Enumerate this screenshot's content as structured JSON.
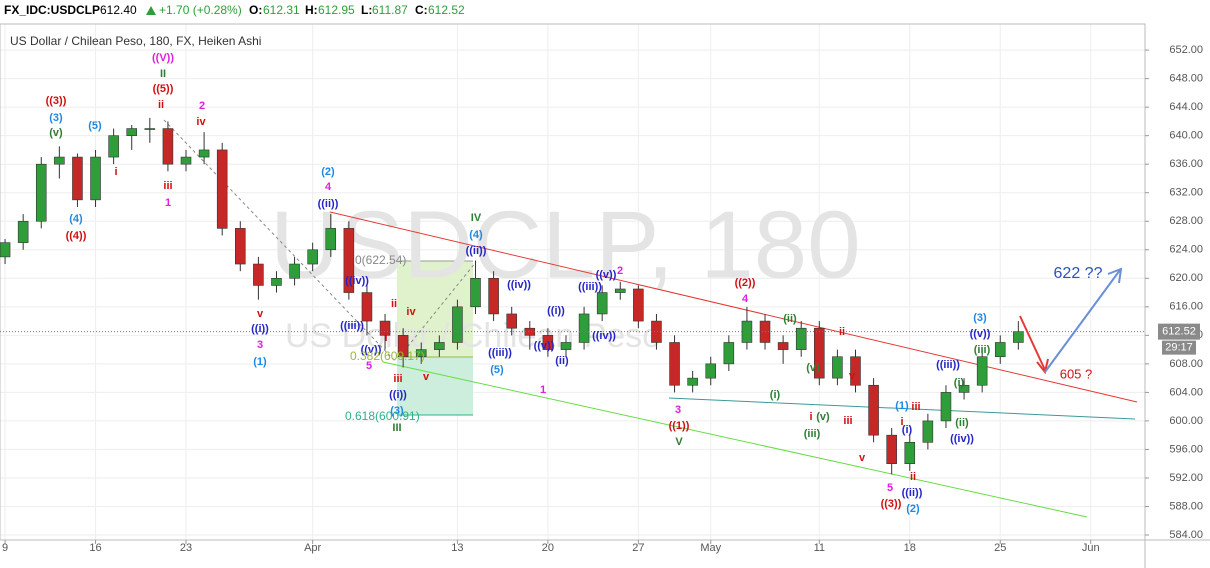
{
  "header": {
    "symbol": "FX_IDC:USDCLP",
    "price": "612.40",
    "change": "+1.70 (+0.28%)",
    "o_label": "O:",
    "o": "612.31",
    "h_label": "H:",
    "h": "612.95",
    "l_label": "L:",
    "l": "611.87",
    "c_label": "C:",
    "c": "612.52"
  },
  "chart_data": {
    "type": "candlestick",
    "title": "US Dollar / Chilean Peso, 180, FX, Heiken Ashi",
    "watermark": "USDCLP, 180",
    "watermark_sub": "US Dollar / Chilean Peso",
    "up_color": "#2f9e3a",
    "down_color": "#c62828",
    "grid": true,
    "x": [
      0,
      1,
      2,
      3,
      4,
      5,
      6,
      7,
      8,
      9,
      10,
      11,
      12,
      13,
      14,
      15,
      16,
      17,
      18,
      19,
      20,
      21,
      22,
      23,
      24,
      25,
      26,
      27,
      28,
      29,
      30,
      31,
      32,
      33,
      34,
      35,
      36,
      37,
      38,
      39,
      40,
      41,
      42,
      43,
      44,
      45,
      46,
      47,
      48,
      49,
      50,
      51,
      52,
      53,
      54,
      55,
      56
    ],
    "open": [
      623,
      625,
      628,
      636,
      637,
      631,
      637,
      640,
      641,
      641,
      636,
      637,
      638,
      627,
      622,
      619,
      620,
      622,
      624,
      627,
      618,
      614,
      612,
      609,
      610,
      611,
      616,
      620,
      615,
      613,
      612,
      610,
      611,
      615,
      618,
      618.5,
      614,
      611,
      605,
      606,
      608,
      611,
      614,
      611,
      610,
      613,
      606,
      609,
      605,
      598,
      594,
      597,
      600,
      604,
      605,
      609,
      611
    ],
    "high": [
      625.5,
      629,
      637,
      638.5,
      637.5,
      638,
      641,
      641.5,
      642.5,
      642,
      638,
      640.5,
      639,
      628,
      623,
      621,
      623,
      625,
      629,
      628,
      619,
      615,
      613,
      611,
      612,
      617,
      622.5,
      621,
      616,
      614,
      613,
      612,
      616,
      619,
      619.5,
      619,
      615,
      612,
      607,
      609,
      612,
      616,
      615,
      612,
      614,
      614,
      610,
      610,
      606,
      599,
      598,
      601,
      605,
      606,
      610,
      612,
      614
    ],
    "low": [
      622,
      624,
      627,
      634,
      630,
      630,
      636,
      638,
      639,
      635,
      635,
      636,
      626,
      621,
      617,
      618,
      619,
      621,
      623,
      617,
      612,
      610,
      607.5,
      608,
      609,
      610,
      615,
      614,
      612,
      610,
      609,
      609,
      610,
      614,
      617,
      613,
      610,
      604,
      604,
      605,
      607,
      610,
      610,
      608,
      609,
      605,
      605,
      604,
      597,
      592.5,
      593,
      596,
      599,
      603,
      604,
      608,
      610
    ],
    "close": [
      625,
      628,
      636,
      637,
      631,
      637,
      640,
      641,
      641,
      636,
      637,
      638,
      627,
      622,
      619,
      620,
      622,
      624,
      627,
      618,
      614,
      612,
      609,
      610,
      611,
      616,
      620,
      615,
      613,
      612,
      610,
      611,
      615,
      618,
      618.5,
      614,
      611,
      605,
      606,
      608,
      611,
      614,
      611,
      610,
      613,
      606,
      609,
      605,
      598,
      594,
      597,
      600,
      604,
      605,
      609,
      611,
      612.52
    ],
    "xlim": [
      -0.28,
      63
    ],
    "xticks": [
      {
        "value": 0,
        "label": "9"
      },
      {
        "value": 5,
        "label": "16"
      },
      {
        "value": 10,
        "label": "23"
      },
      {
        "value": 17,
        "label": "Apr"
      },
      {
        "value": 25,
        "label": "13"
      },
      {
        "value": 30,
        "label": "20"
      },
      {
        "value": 35,
        "label": "27"
      },
      {
        "value": 39,
        "label": "May"
      },
      {
        "value": 45,
        "label": "11"
      },
      {
        "value": 50,
        "label": "18"
      },
      {
        "value": 55,
        "label": "25"
      },
      {
        "value": 60,
        "label": "Jun"
      }
    ],
    "ylim": [
      583.3,
      655.1
    ],
    "yticks": [
      {
        "value": 584,
        "label": "584.00"
      },
      {
        "value": 588,
        "label": "588.00"
      },
      {
        "value": 592,
        "label": "592.00"
      },
      {
        "value": 596,
        "label": "596.00"
      },
      {
        "value": 600,
        "label": "600.00"
      },
      {
        "value": 604,
        "label": "604.00"
      },
      {
        "value": 608,
        "label": "608.00"
      },
      {
        "value": 612,
        "label": "612.00"
      },
      {
        "value": 616,
        "label": "616.00"
      },
      {
        "value": 620,
        "label": "620.00"
      },
      {
        "value": 624,
        "label": "624.00"
      },
      {
        "value": 628,
        "label": "628.00"
      },
      {
        "value": 632,
        "label": "632.00"
      },
      {
        "value": 636,
        "label": "636.00"
      },
      {
        "value": 640,
        "label": "640.00"
      },
      {
        "value": 644,
        "label": "644.00"
      },
      {
        "value": 648,
        "label": "648.00"
      },
      {
        "value": 652,
        "label": "652.00"
      }
    ],
    "last_price": 612.52,
    "countdown": "29:17",
    "annotations": [
      {
        "text": "((3))",
        "color": "#d01010"
      },
      {
        "text": "(3)",
        "color": "#1e88e5"
      },
      {
        "text": "(v)",
        "color": "#2e7d32"
      },
      {
        "text": "(5)",
        "color": "#1e88e5"
      },
      {
        "text": "i",
        "color": "#d01010"
      },
      {
        "text": "(4)",
        "color": "#1e88e5"
      },
      {
        "text": "((4))",
        "color": "#d01010"
      },
      {
        "text": "((V))",
        "color": "#e020e0"
      },
      {
        "text": "II",
        "color": "#2e7d32"
      },
      {
        "text": "((5))",
        "color": "#d01010"
      },
      {
        "text": "ii",
        "color": "#d01010"
      },
      {
        "text": "2",
        "color": "#e020e0"
      },
      {
        "text": "iv",
        "color": "#d01010"
      },
      {
        "text": "iii",
        "color": "#d01010"
      },
      {
        "text": "1",
        "color": "#e020e0"
      },
      {
        "text": "(2)",
        "color": "#1e88e5"
      },
      {
        "text": "4",
        "color": "#e020e0"
      },
      {
        "text": "((ii))",
        "color": "#2424c8"
      },
      {
        "text": "v",
        "color": "#d01010"
      },
      {
        "text": "((i))",
        "color": "#2424c8"
      },
      {
        "text": "3",
        "color": "#e020e0"
      },
      {
        "text": "(1)",
        "color": "#1e88e5"
      },
      {
        "text": "((iv))",
        "color": "#2424c8"
      },
      {
        "text": "ii",
        "color": "#d01010"
      },
      {
        "text": "iv",
        "color": "#d01010"
      },
      {
        "text": "i",
        "color": "#d01010"
      },
      {
        "text": "((iii))",
        "color": "#2424c8"
      },
      {
        "text": "((v))",
        "color": "#2424c8"
      },
      {
        "text": "5",
        "color": "#e020e0"
      },
      {
        "text": "iii",
        "color": "#d01010"
      },
      {
        "text": "v",
        "color": "#d01010"
      },
      {
        "text": "((i))",
        "color": "#2424c8"
      },
      {
        "text": "(3)",
        "color": "#1e88e5"
      },
      {
        "text": "III",
        "color": "#2e7d32"
      },
      {
        "text": "IV",
        "color": "#2e7d32"
      },
      {
        "text": "(4)",
        "color": "#1e88e5"
      },
      {
        "text": "((ii))",
        "color": "#2424c8"
      },
      {
        "text": "((iv))",
        "color": "#2424c8"
      },
      {
        "text": "((i))",
        "color": "#2424c8"
      },
      {
        "text": "((iii))",
        "color": "#2424c8"
      },
      {
        "text": "(5)",
        "color": "#1e88e5"
      },
      {
        "text": "((v))",
        "color": "#2424c8"
      },
      {
        "text": "(ii)",
        "color": "#2424c8"
      },
      {
        "text": "1",
        "color": "#e020e0"
      },
      {
        "text": "((iii))",
        "color": "#2424c8"
      },
      {
        "text": "((v))",
        "color": "#2424c8"
      },
      {
        "text": "2",
        "color": "#e020e0"
      },
      {
        "text": "((iv))",
        "color": "#2424c8"
      },
      {
        "text": "((2))",
        "color": "#d01010"
      },
      {
        "text": "4",
        "color": "#e020e0"
      },
      {
        "text": "(ii)",
        "color": "#2e7d32"
      },
      {
        "text": "(v)",
        "color": "#2e7d32"
      },
      {
        "text": "(i)",
        "color": "#2e7d32"
      },
      {
        "text": "ii",
        "color": "#d01010"
      },
      {
        "text": "v",
        "color": "#d01010"
      },
      {
        "text": "i",
        "color": "#d01010"
      },
      {
        "text": "(v)",
        "color": "#2e7d32"
      },
      {
        "text": "iii",
        "color": "#d01010"
      },
      {
        "text": "(iii)",
        "color": "#2e7d32"
      },
      {
        "text": "3",
        "color": "#e020e0"
      },
      {
        "text": "((1))",
        "color": "#d01010"
      },
      {
        "text": "V",
        "color": "#2e7d32"
      },
      {
        "text": "v",
        "color": "#d01010"
      },
      {
        "text": "(1)",
        "color": "#1e88e5"
      },
      {
        "text": "iii",
        "color": "#d01010"
      },
      {
        "text": "i",
        "color": "#d01010"
      },
      {
        "text": "(i)",
        "color": "#2424c8"
      },
      {
        "text": "5",
        "color": "#e020e0"
      },
      {
        "text": "ii",
        "color": "#d01010"
      },
      {
        "text": "((ii))",
        "color": "#2424c8"
      },
      {
        "text": "((3))",
        "color": "#d01010"
      },
      {
        "text": "(2)",
        "color": "#1e88e5"
      },
      {
        "text": "(i)",
        "color": "#2e7d32"
      },
      {
        "text": "(ii)",
        "color": "#2e7d32"
      },
      {
        "text": "((iv))",
        "color": "#2424c8"
      },
      {
        "text": "((iii))",
        "color": "#2424c8"
      },
      {
        "text": "(iii)",
        "color": "#2e7d32"
      },
      {
        "text": "((v))",
        "color": "#2424c8"
      },
      {
        "text": "(3)",
        "color": "#1e88e5"
      },
      {
        "text": "622 ??",
        "color": "#2a52be"
      },
      {
        "text": "605 ?",
        "color": "#d01010"
      },
      {
        "text": "0(622.54)",
        "color": "#888888"
      },
      {
        "text": "0.382(609.17)",
        "color": "#9ab83a"
      },
      {
        "text": "0.618(600.91)",
        "color": "#2fb08a"
      }
    ]
  }
}
